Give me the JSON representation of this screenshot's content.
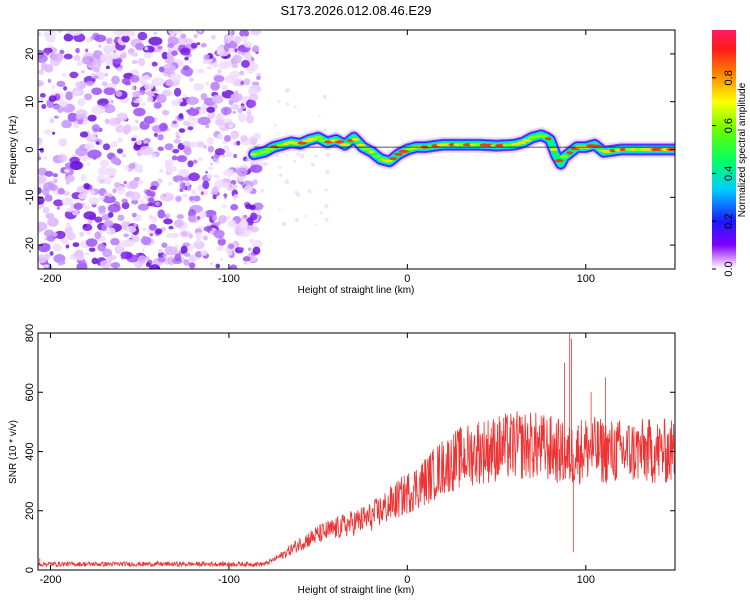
{
  "title": "S173.2026.012.08.46.E29",
  "chart_data": [
    {
      "type": "heatmap",
      "name": "spectrogram",
      "xlabel": "Height of straight line (km)",
      "ylabel": "Frequency (Hz)",
      "xlim": [
        -207,
        150
      ],
      "ylim": [
        -25,
        25
      ],
      "xticks": [
        "-200",
        "-100",
        "0",
        "100"
      ],
      "yticks": [
        "20",
        "10",
        "0",
        "-10",
        "-20"
      ],
      "noise_region_x": [
        -207,
        -83
      ],
      "ridge": {
        "x": [
          -86,
          -80,
          -75,
          -70,
          -65,
          -60,
          -55,
          -50,
          -45,
          -40,
          -35,
          -30,
          -25,
          -20,
          -15,
          -10,
          -5,
          0,
          5,
          10,
          20,
          30,
          40,
          50,
          60,
          65,
          70,
          75,
          78,
          80,
          83,
          86,
          88,
          90,
          95,
          100,
          105,
          110,
          120,
          130,
          140,
          150
        ],
        "y": [
          -1,
          -0.5,
          0.5,
          1.0,
          1.5,
          1.2,
          2.0,
          2.5,
          1.5,
          2.0,
          1.0,
          2.5,
          0.5,
          -0.5,
          -2.0,
          -2.5,
          -1.0,
          0.0,
          0.5,
          0.5,
          1.0,
          1.0,
          1.0,
          0.8,
          1.0,
          1.5,
          2.5,
          3.0,
          2.5,
          2.0,
          -1.0,
          -3.0,
          -1.5,
          -1.0,
          0.5,
          0.5,
          1.0,
          -0.5,
          0.0,
          0.0,
          0.0,
          0.0
        ]
      },
      "reference_line": {
        "x": [
          -86,
          150
        ],
        "y": [
          0.5,
          0.5
        ]
      },
      "colorbar": {
        "label": "Normalized spectral amplitude",
        "range": [
          0,
          1
        ],
        "ticks": [
          "0.0",
          "0.2",
          "0.4",
          "0.6",
          "0.8"
        ]
      }
    },
    {
      "type": "line",
      "name": "snr",
      "xlabel": "Height of straight line (km)",
      "ylabel": "SNR (10 * v/v)",
      "xlim": [
        -207,
        150
      ],
      "ylim": [
        0,
        800
      ],
      "xticks": [
        "-200",
        "-100",
        "0",
        "100"
      ],
      "yticks": [
        "800",
        "600",
        "400",
        "200",
        "0"
      ],
      "color": "#ee3333",
      "series": [
        {
          "name": "SNR",
          "envelope_x": [
            -207,
            -120,
            -80,
            -70,
            -60,
            -50,
            -40,
            -30,
            -20,
            -10,
            0,
            10,
            20,
            30,
            40,
            50,
            60,
            70,
            80,
            85,
            90,
            95,
            100,
            110,
            120,
            130,
            140,
            150
          ],
          "envelope_y": [
            20,
            20,
            20,
            50,
            90,
            120,
            140,
            160,
            180,
            220,
            260,
            300,
            350,
            380,
            400,
            410,
            420,
            420,
            410,
            400,
            380,
            400,
            410,
            400,
            400,
            400,
            400,
            400
          ],
          "peaks": [
            {
              "x": -206,
              "y": 40
            },
            {
              "x": 40,
              "y": 500
            },
            {
              "x": 47,
              "y": 480
            },
            {
              "x": 88,
              "y": 700
            },
            {
              "x": 91,
              "y": 800
            },
            {
              "x": 92,
              "y": 780
            },
            {
              "x": 93,
              "y": 60
            },
            {
              "x": 103,
              "y": 600
            },
            {
              "x": 111,
              "y": 650
            }
          ]
        }
      ]
    }
  ]
}
